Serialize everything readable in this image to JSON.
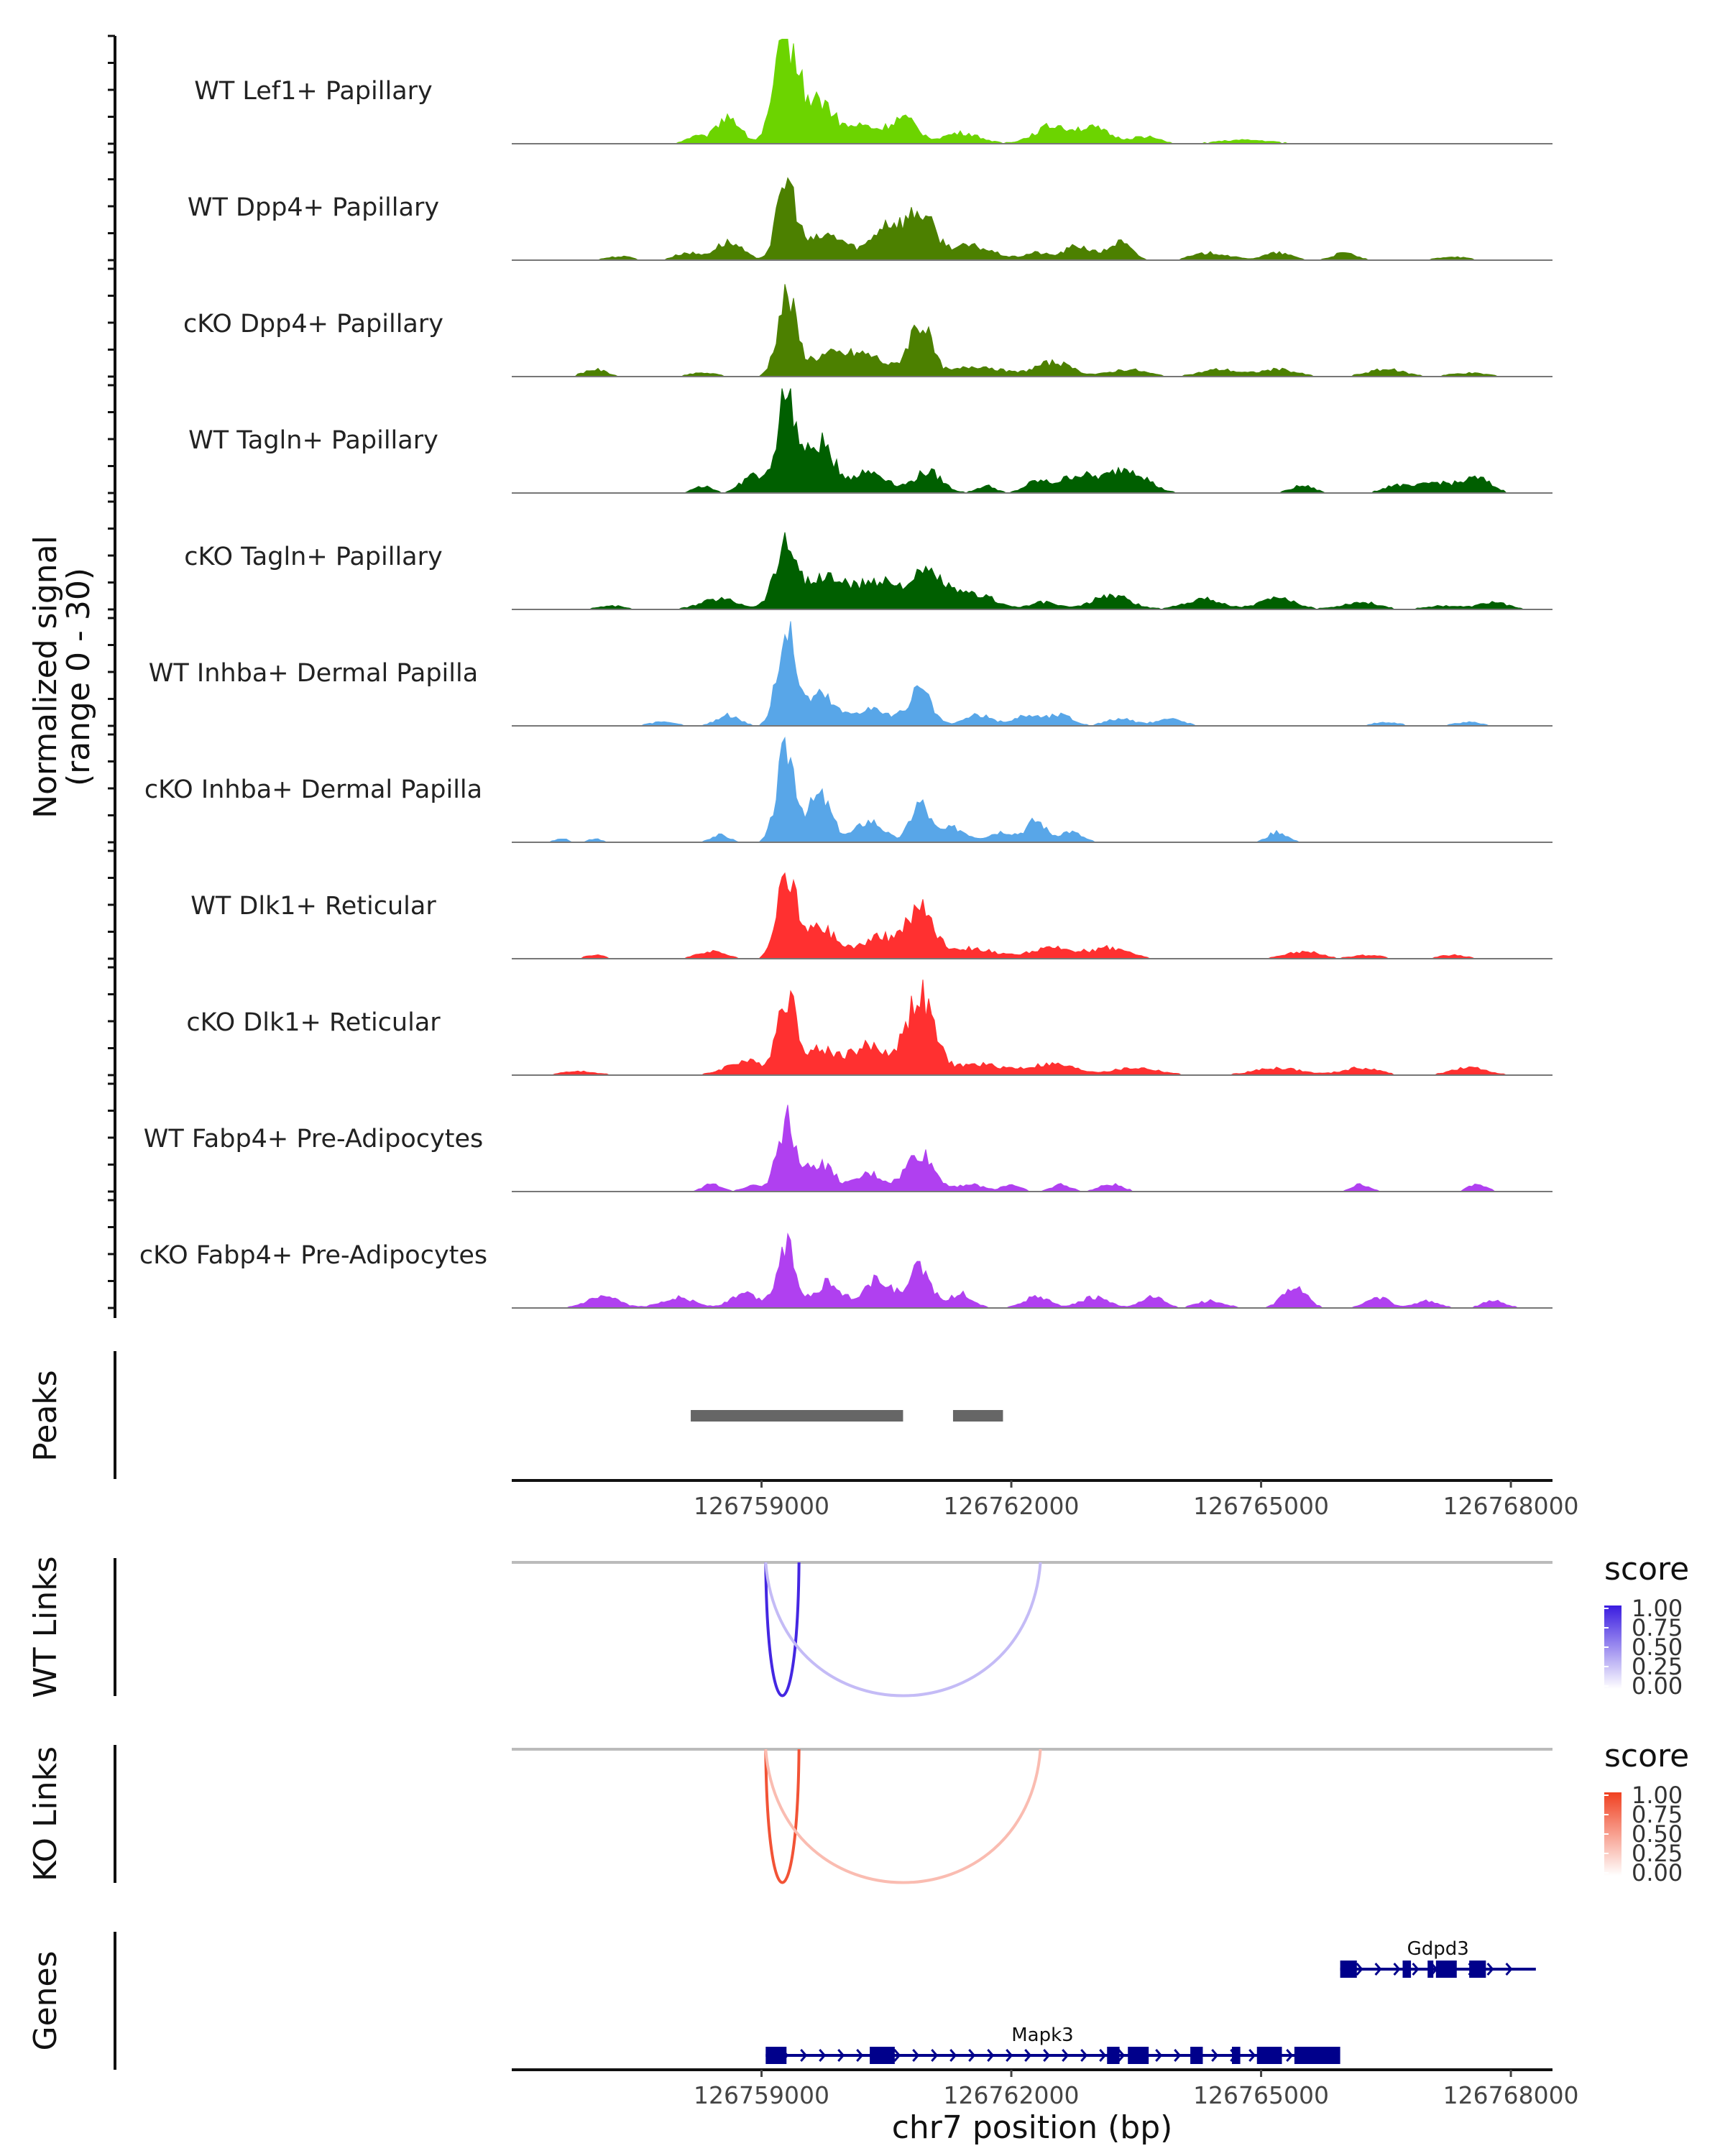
{
  "chart_data": {
    "type": "genome-coverage",
    "region": {
      "chrom": "chr7",
      "start": 126756000,
      "end": 126768500
    },
    "xlabel": "chr7 position (bp)",
    "xticks": [
      126759000,
      126762000,
      126765000,
      126768000
    ],
    "coverage": {
      "ylabel_line1": "Normalized signal",
      "ylabel_line2": "(range 0 - 30)",
      "ylim": [
        0,
        30
      ],
      "tracks": [
        {
          "name": "WT Lef1+ Papillary",
          "color": "#6CD400",
          "peaks": [
            [
              126758200,
              2,
              4
            ],
            [
              126758600,
              8,
              5
            ],
            [
              126759300,
              30,
              5
            ],
            [
              126759700,
              12,
              6
            ],
            [
              126760200,
              5,
              7
            ],
            [
              126760700,
              7,
              6
            ],
            [
              126761400,
              3,
              8
            ],
            [
              126762500,
              5,
              8
            ],
            [
              126763000,
              4,
              7
            ],
            [
              126763600,
              2,
              6
            ],
            [
              126764800,
              1,
              12
            ]
          ]
        },
        {
          "name": "WT Dpp4+ Papillary",
          "color": "#4C8000",
          "peaks": [
            [
              126757300,
              1,
              6
            ],
            [
              126758100,
              2,
              5
            ],
            [
              126758600,
              5,
              6
            ],
            [
              126759300,
              22,
              4
            ],
            [
              126759800,
              7,
              9
            ],
            [
              126760500,
              10,
              6
            ],
            [
              126760900,
              13,
              6
            ],
            [
              126761500,
              4,
              10
            ],
            [
              126762300,
              2,
              5
            ],
            [
              126762800,
              4,
              6
            ],
            [
              126763300,
              5,
              5
            ],
            [
              126764400,
              2,
              8
            ],
            [
              126765200,
              2,
              6
            ],
            [
              126766000,
              2,
              5
            ],
            [
              126767300,
              1,
              6
            ]
          ]
        },
        {
          "name": "cKO Dpp4+ Papillary",
          "color": "#4C8000",
          "peaks": [
            [
              126757000,
              2,
              5
            ],
            [
              126758300,
              1,
              6
            ],
            [
              126759300,
              22,
              4
            ],
            [
              126759800,
              6,
              10
            ],
            [
              126760300,
              5,
              8
            ],
            [
              126760900,
              15,
              5
            ],
            [
              126761600,
              3,
              10
            ],
            [
              126762500,
              4,
              8
            ],
            [
              126763400,
              2,
              8
            ],
            [
              126764500,
              2,
              8
            ],
            [
              126765200,
              2,
              8
            ],
            [
              126766500,
              2,
              8
            ],
            [
              126767500,
              1,
              8
            ]
          ]
        },
        {
          "name": "WT Tagln+ Papillary",
          "color": "#005F00",
          "peaks": [
            [
              126758300,
              2,
              4
            ],
            [
              126758900,
              5,
              5
            ],
            [
              126759300,
              28,
              4
            ],
            [
              126759700,
              14,
              6
            ],
            [
              126760300,
              6,
              8
            ],
            [
              126761000,
              6,
              6
            ],
            [
              126761700,
              2,
              4
            ],
            [
              126762300,
              3,
              5
            ],
            [
              126762800,
              5,
              8
            ],
            [
              126763400,
              7,
              8
            ],
            [
              126765500,
              2,
              5
            ],
            [
              126766600,
              2,
              5
            ],
            [
              126767100,
              3,
              8
            ],
            [
              126767600,
              4,
              6
            ]
          ]
        },
        {
          "name": "cKO Tagln+ Papillary",
          "color": "#005F00",
          "peaks": [
            [
              126757200,
              1,
              6
            ],
            [
              126758500,
              3,
              8
            ],
            [
              126759300,
              18,
              5
            ],
            [
              126759800,
              9,
              8
            ],
            [
              126760400,
              8,
              8
            ],
            [
              126761000,
              10,
              8
            ],
            [
              126761600,
              4,
              8
            ],
            [
              126762400,
              2,
              6
            ],
            [
              126763200,
              4,
              8
            ],
            [
              126764300,
              3,
              8
            ],
            [
              126765200,
              3,
              8
            ],
            [
              126766200,
              2,
              8
            ],
            [
              126767200,
              1,
              8
            ],
            [
              126767800,
              2,
              6
            ]
          ]
        },
        {
          "name": "WT Inhba+ Dermal Papilla",
          "color": "#58A6E8",
          "peaks": [
            [
              126757800,
              1,
              6
            ],
            [
              126758600,
              3,
              5
            ],
            [
              126759300,
              27,
              4
            ],
            [
              126759700,
              9,
              6
            ],
            [
              126760300,
              5,
              8
            ],
            [
              126760900,
              10,
              5
            ],
            [
              126761600,
              3,
              6
            ],
            [
              126762200,
              3,
              6
            ],
            [
              126762600,
              3,
              5
            ],
            [
              126763300,
              2,
              6
            ],
            [
              126763900,
              2,
              6
            ],
            [
              126766500,
              1,
              6
            ],
            [
              126767500,
              1,
              6
            ]
          ]
        },
        {
          "name": "cKO Inhba+ Dermal Papilla",
          "color": "#58A6E8",
          "peaks": [
            [
              126756600,
              1,
              3
            ],
            [
              126757000,
              1,
              3
            ],
            [
              126758500,
              2,
              4
            ],
            [
              126759300,
              26,
              4
            ],
            [
              126759700,
              13,
              5
            ],
            [
              126760300,
              6,
              6
            ],
            [
              126760900,
              11,
              4
            ],
            [
              126761300,
              4,
              6
            ],
            [
              126761900,
              3,
              6
            ],
            [
              126762300,
              6,
              4
            ],
            [
              126762700,
              3,
              5
            ],
            [
              126765200,
              3,
              4
            ]
          ]
        },
        {
          "name": "WT Dlk1+ Reticular",
          "color": "#FF3030",
          "peaks": [
            [
              126757000,
              1,
              4
            ],
            [
              126758400,
              2,
              6
            ],
            [
              126759300,
              24,
              4
            ],
            [
              126759700,
              9,
              7
            ],
            [
              126760400,
              6,
              8
            ],
            [
              126760900,
              14,
              6
            ],
            [
              126761500,
              3,
              10
            ],
            [
              126762500,
              3,
              10
            ],
            [
              126763200,
              3,
              8
            ],
            [
              126765500,
              2,
              8
            ],
            [
              126766300,
              1,
              6
            ],
            [
              126767300,
              1,
              6
            ]
          ]
        },
        {
          "name": "cKO Dlk1+ Reticular",
          "color": "#FF3030",
          "peaks": [
            [
              126756800,
              1,
              8
            ],
            [
              126758800,
              4,
              8
            ],
            [
              126759300,
              22,
              4
            ],
            [
              126759700,
              7,
              8
            ],
            [
              126760300,
              8,
              8
            ],
            [
              126760900,
              22,
              6
            ],
            [
              126761600,
              3,
              12
            ],
            [
              126762500,
              3,
              10
            ],
            [
              126763500,
              2,
              10
            ],
            [
              126765200,
              2,
              10
            ],
            [
              126766200,
              2,
              8
            ],
            [
              126767500,
              2,
              8
            ]
          ]
        },
        {
          "name": "WT Fabp4+ Pre-Adipocytes",
          "color": "#B040F0",
          "peaks": [
            [
              126758400,
              2,
              4
            ],
            [
              126758900,
              2,
              4
            ],
            [
              126759300,
              20,
              4
            ],
            [
              126759700,
              8,
              6
            ],
            [
              126760300,
              5,
              6
            ],
            [
              126760900,
              11,
              6
            ],
            [
              126761500,
              2,
              6
            ],
            [
              126762000,
              2,
              4
            ],
            [
              126762600,
              2,
              4
            ],
            [
              126763200,
              2,
              5
            ],
            [
              126766200,
              2,
              4
            ],
            [
              126767600,
              2,
              4
            ]
          ]
        },
        {
          "name": "cKO Fabp4+ Pre-Adipocytes",
          "color": "#B040F0",
          "peaks": [
            [
              126757100,
              3,
              7
            ],
            [
              126758000,
              3,
              7
            ],
            [
              126758800,
              4,
              6
            ],
            [
              126759300,
              18,
              4
            ],
            [
              126759800,
              7,
              6
            ],
            [
              126760400,
              8,
              6
            ],
            [
              126760900,
              11,
              5
            ],
            [
              126761400,
              4,
              5
            ],
            [
              126762300,
              3,
              6
            ],
            [
              126763000,
              3,
              6
            ],
            [
              126763700,
              3,
              5
            ],
            [
              126764400,
              2,
              6
            ],
            [
              126765400,
              6,
              5
            ],
            [
              126766400,
              3,
              5
            ],
            [
              126767000,
              2,
              5
            ],
            [
              126767800,
              2,
              5
            ]
          ]
        }
      ]
    },
    "peaks_track": {
      "label": "Peaks",
      "color": "#666666",
      "intervals": [
        [
          126758150,
          126760700
        ],
        [
          126761300,
          126761900
        ]
      ]
    },
    "link_tracks": [
      {
        "label": "WT Links",
        "legend_title": "score",
        "color_low": "#FFFFFF",
        "color_high": "#3A1CE0",
        "links": [
          [
            126759050,
            126759450,
            0.95
          ],
          [
            126759050,
            126762350,
            0.3
          ]
        ]
      },
      {
        "label": "KO Links",
        "legend_title": "score",
        "color_low": "#FFFFFF",
        "color_high": "#F04020",
        "links": [
          [
            126759050,
            126759450,
            0.9
          ],
          [
            126759050,
            126762350,
            0.35
          ]
        ]
      }
    ],
    "legend_ticks": [
      "1.00",
      "0.75",
      "0.50",
      "0.25",
      "0.00"
    ],
    "genes_track": {
      "label": "Genes",
      "color": "#00008B",
      "genes": [
        {
          "name": "Mapk3",
          "start": 126759050,
          "end": 126765700,
          "row": 1,
          "exons": [
            [
              126759050,
              126759300
            ],
            [
              126760300,
              126760600
            ],
            [
              126763150,
              126763300
            ],
            [
              126763400,
              126763650
            ],
            [
              126764150,
              126764300
            ],
            [
              126764650,
              126764750
            ],
            [
              126764950,
              126765250
            ],
            [
              126765400,
              126765950
            ]
          ]
        },
        {
          "name": "Gdpd3",
          "start": 126765950,
          "end": 126768300,
          "row": 0,
          "exons": [
            [
              126765950,
              126766150
            ],
            [
              126766700,
              126766800
            ],
            [
              126767000,
              126767050
            ],
            [
              126767100,
              126767350
            ],
            [
              126767500,
              126767700
            ]
          ]
        }
      ]
    }
  }
}
